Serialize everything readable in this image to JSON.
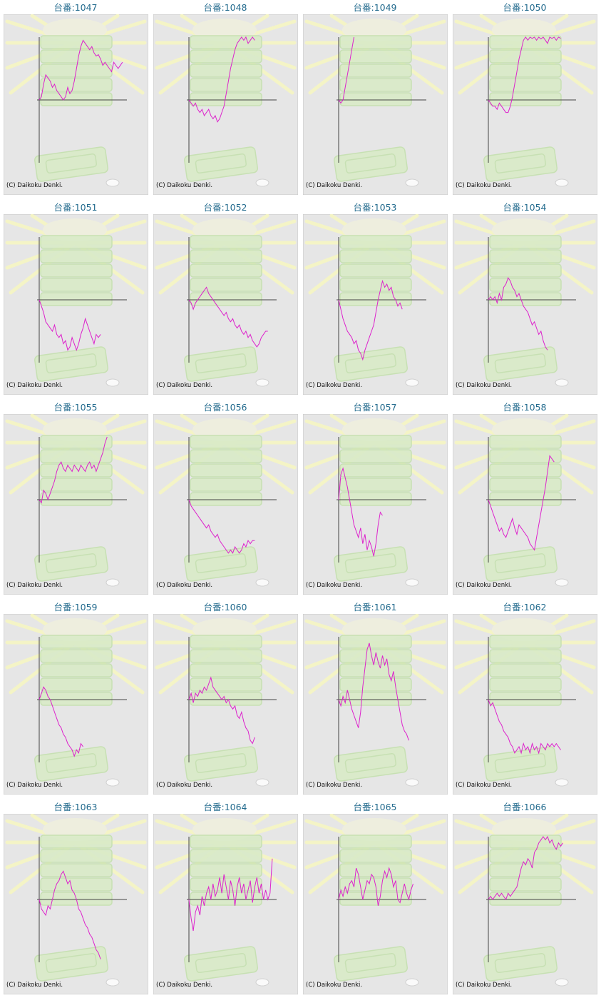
{
  "chart_data": [
    {
      "type": "line",
      "title": "台番:1047",
      "copyright": "(C) Daikoku Denki.",
      "color": "#dd22cc",
      "xlim": [
        0,
        40
      ],
      "ylim": [
        -100,
        100
      ],
      "yticks": [
        0
      ],
      "values": [
        0,
        5,
        25,
        40,
        35,
        30,
        20,
        25,
        15,
        10,
        5,
        0,
        5,
        20,
        10,
        15,
        30,
        50,
        70,
        85,
        95,
        90,
        85,
        80,
        85,
        75,
        70,
        72,
        65,
        55,
        60,
        55,
        50,
        45,
        60,
        55,
        50,
        55,
        60
      ]
    },
    {
      "type": "line",
      "title": "台番:1048",
      "copyright": "(C) Daikoku Denki.",
      "color": "#dd22cc",
      "xlim": [
        0,
        40
      ],
      "ylim": [
        -100,
        100
      ],
      "yticks": [
        0
      ],
      "values": [
        0,
        -5,
        -10,
        -5,
        -15,
        -20,
        -15,
        -25,
        -20,
        -15,
        -25,
        -30,
        -25,
        -35,
        -30,
        -20,
        -10,
        10,
        30,
        50,
        65,
        80,
        90,
        95,
        100,
        95,
        100,
        90,
        95,
        100,
        95
      ]
    },
    {
      "type": "line",
      "title": "台番:1049",
      "copyright": "(C) Daikoku Denki.",
      "color": "#dd22cc",
      "xlim": [
        0,
        40
      ],
      "ylim": [
        -100,
        100
      ],
      "yticks": [
        0
      ],
      "values": [
        0,
        -5,
        0,
        20,
        40,
        60,
        80,
        100
      ]
    },
    {
      "type": "line",
      "title": "台番:1050",
      "copyright": "(C) Daikoku Denki.",
      "color": "#dd22cc",
      "xlim": [
        0,
        40
      ],
      "ylim": [
        -100,
        100
      ],
      "yticks": [
        0
      ],
      "values": [
        0,
        -5,
        -10,
        -10,
        -15,
        -5,
        -10,
        -15,
        -20,
        -20,
        -10,
        5,
        25,
        45,
        65,
        80,
        95,
        100,
        95,
        100,
        98,
        100,
        95,
        100,
        97,
        100,
        95,
        90,
        100,
        98,
        100,
        95,
        100,
        98
      ]
    },
    {
      "type": "line",
      "title": "台番:1051",
      "copyright": "(C) Daikoku Denki.",
      "color": "#dd22cc",
      "xlim": [
        0,
        40
      ],
      "ylim": [
        -100,
        100
      ],
      "yticks": [
        0
      ],
      "values": [
        0,
        -10,
        -20,
        -35,
        -40,
        -45,
        -50,
        -40,
        -55,
        -60,
        -55,
        -70,
        -65,
        -80,
        -75,
        -60,
        -70,
        -80,
        -70,
        -55,
        -45,
        -30,
        -40,
        -50,
        -60,
        -70,
        -55,
        -60,
        -55
      ]
    },
    {
      "type": "line",
      "title": "台番:1052",
      "copyright": "(C) Daikoku Denki.",
      "color": "#dd22cc",
      "xlim": [
        0,
        40
      ],
      "ylim": [
        -100,
        100
      ],
      "yticks": [
        0
      ],
      "values": [
        0,
        -5,
        -15,
        -5,
        0,
        5,
        10,
        15,
        20,
        10,
        5,
        0,
        -5,
        -10,
        -15,
        -20,
        -25,
        -20,
        -30,
        -35,
        -30,
        -40,
        -45,
        -40,
        -50,
        -55,
        -50,
        -60,
        -55,
        -65,
        -70,
        -75,
        -70,
        -60,
        -55,
        -50,
        -50
      ]
    },
    {
      "type": "line",
      "title": "台番:1053",
      "copyright": "(C) Daikoku Denki.",
      "color": "#dd22cc",
      "xlim": [
        0,
        40
      ],
      "ylim": [
        -100,
        100
      ],
      "yticks": [
        0
      ],
      "values": [
        0,
        -15,
        -30,
        -40,
        -50,
        -55,
        -60,
        -70,
        -65,
        -80,
        -85,
        -95,
        -80,
        -70,
        -60,
        -50,
        -40,
        -20,
        0,
        15,
        30,
        20,
        25,
        15,
        20,
        5,
        0,
        -10,
        -5,
        -15
      ]
    },
    {
      "type": "line",
      "title": "台番:1054",
      "copyright": "(C) Daikoku Denki.",
      "color": "#dd22cc",
      "xlim": [
        0,
        40
      ],
      "ylim": [
        -100,
        100
      ],
      "yticks": [
        0
      ],
      "values": [
        0,
        5,
        0,
        5,
        -5,
        10,
        0,
        20,
        25,
        35,
        30,
        20,
        15,
        5,
        10,
        0,
        -10,
        -15,
        -20,
        -30,
        -40,
        -35,
        -45,
        -55,
        -50,
        -65,
        -75,
        -80
      ]
    },
    {
      "type": "line",
      "title": "台番:1055",
      "copyright": "(C) Daikoku Denki.",
      "color": "#dd22cc",
      "xlim": [
        0,
        40
      ],
      "ylim": [
        -100,
        100
      ],
      "yticks": [
        0
      ],
      "values": [
        0,
        -5,
        15,
        10,
        0,
        10,
        20,
        30,
        45,
        55,
        60,
        50,
        45,
        55,
        50,
        45,
        55,
        50,
        45,
        55,
        50,
        45,
        55,
        60,
        50,
        55,
        45,
        55,
        65,
        75,
        90,
        100
      ]
    },
    {
      "type": "line",
      "title": "台番:1056",
      "copyright": "(C) Daikoku Denki.",
      "color": "#dd22cc",
      "xlim": [
        0,
        40
      ],
      "ylim": [
        -100,
        100
      ],
      "yticks": [
        0
      ],
      "values": [
        0,
        -10,
        -15,
        -20,
        -25,
        -30,
        -35,
        -40,
        -45,
        -40,
        -50,
        -55,
        -60,
        -55,
        -65,
        -70,
        -75,
        -80,
        -85,
        -80,
        -85,
        -75,
        -80,
        -85,
        -80,
        -70,
        -75,
        -65,
        -70,
        -65,
        -65
      ]
    },
    {
      "type": "line",
      "title": "台番:1057",
      "copyright": "(C) Daikoku Denki.",
      "color": "#dd22cc",
      "xlim": [
        0,
        40
      ],
      "ylim": [
        -100,
        100
      ],
      "yticks": [
        0
      ],
      "values": [
        0,
        40,
        50,
        35,
        20,
        0,
        -20,
        -40,
        -50,
        -60,
        -45,
        -70,
        -55,
        -80,
        -65,
        -75,
        -90,
        -70,
        -40,
        -20,
        -25
      ]
    },
    {
      "type": "line",
      "title": "台番:1058",
      "copyright": "(C) Daikoku Denki.",
      "color": "#dd22cc",
      "xlim": [
        0,
        40
      ],
      "ylim": [
        -100,
        100
      ],
      "yticks": [
        0
      ],
      "values": [
        0,
        -10,
        -20,
        -30,
        -40,
        -50,
        -45,
        -55,
        -60,
        -50,
        -40,
        -30,
        -45,
        -55,
        -40,
        -45,
        -50,
        -55,
        -60,
        -70,
        -75,
        -80,
        -60,
        -40,
        -20,
        0,
        20,
        45,
        70,
        65,
        60
      ]
    },
    {
      "type": "line",
      "title": "台番:1059",
      "copyright": "(C) Daikoku Denki.",
      "color": "#dd22cc",
      "xlim": [
        0,
        40
      ],
      "ylim": [
        -100,
        100
      ],
      "yticks": [
        0
      ],
      "values": [
        0,
        10,
        20,
        15,
        5,
        0,
        -10,
        -20,
        -30,
        -40,
        -45,
        -55,
        -60,
        -70,
        -75,
        -80,
        -90,
        -80,
        -85,
        -70,
        -75
      ]
    },
    {
      "type": "line",
      "title": "台番:1060",
      "copyright": "(C) Daikoku Denki.",
      "color": "#dd22cc",
      "xlim": [
        0,
        40
      ],
      "ylim": [
        -100,
        100
      ],
      "yticks": [
        0
      ],
      "values": [
        0,
        10,
        -5,
        10,
        5,
        15,
        10,
        20,
        15,
        25,
        35,
        20,
        15,
        10,
        5,
        0,
        5,
        -5,
        0,
        -10,
        -15,
        -10,
        -25,
        -30,
        -20,
        -35,
        -45,
        -50,
        -65,
        -70,
        -60
      ]
    },
    {
      "type": "line",
      "title": "台番:1061",
      "copyright": "(C) Daikoku Denki.",
      "color": "#dd22cc",
      "xlim": [
        0,
        40
      ],
      "ylim": [
        -100,
        100
      ],
      "yticks": [
        0
      ],
      "values": [
        0,
        -10,
        5,
        -5,
        15,
        0,
        -15,
        -25,
        -35,
        -45,
        -20,
        20,
        50,
        80,
        90,
        70,
        55,
        75,
        60,
        50,
        70,
        55,
        65,
        40,
        30,
        45,
        20,
        0,
        -20,
        -40,
        -50,
        -55,
        -65
      ]
    },
    {
      "type": "line",
      "title": "台番:1062",
      "copyright": "(C) Daikoku Denki.",
      "color": "#dd22cc",
      "xlim": [
        0,
        40
      ],
      "ylim": [
        -100,
        100
      ],
      "yticks": [
        0
      ],
      "values": [
        0,
        -10,
        -5,
        -15,
        -25,
        -35,
        -40,
        -50,
        -55,
        -60,
        -70,
        -75,
        -85,
        -80,
        -75,
        -85,
        -70,
        -80,
        -75,
        -85,
        -70,
        -80,
        -75,
        -85,
        -70,
        -75,
        -80,
        -70,
        -75,
        -70,
        -75,
        -70,
        -75,
        -80
      ]
    },
    {
      "type": "line",
      "title": "台番:1063",
      "copyright": "(C) Daikoku Denki.",
      "color": "#dd22cc",
      "xlim": [
        0,
        40
      ],
      "ylim": [
        -100,
        100
      ],
      "yticks": [
        0
      ],
      "values": [
        0,
        -15,
        -20,
        -25,
        -10,
        -15,
        0,
        15,
        25,
        30,
        40,
        45,
        35,
        25,
        30,
        15,
        10,
        0,
        -15,
        -20,
        -30,
        -40,
        -45,
        -55,
        -60,
        -70,
        -80,
        -85,
        -95
      ]
    },
    {
      "type": "line",
      "title": "台番:1064",
      "copyright": "(C) Daikoku Denki.",
      "color": "#dd22cc",
      "xlim": [
        0,
        40
      ],
      "ylim": [
        -100,
        100
      ],
      "yticks": [
        0
      ],
      "values": [
        0,
        -30,
        -50,
        -20,
        -10,
        -25,
        5,
        -10,
        10,
        20,
        0,
        25,
        5,
        15,
        35,
        10,
        40,
        20,
        0,
        30,
        15,
        -10,
        20,
        35,
        10,
        25,
        0,
        15,
        30,
        -5,
        20,
        35,
        10,
        25,
        0,
        15,
        0,
        10,
        65
      ]
    },
    {
      "type": "line",
      "title": "台番:1065",
      "copyright": "(C) Daikoku Denki.",
      "color": "#dd22cc",
      "xlim": [
        0,
        40
      ],
      "ylim": [
        -100,
        100
      ],
      "yticks": [
        0
      ],
      "values": [
        0,
        15,
        5,
        20,
        10,
        25,
        30,
        20,
        50,
        40,
        20,
        0,
        15,
        30,
        25,
        40,
        35,
        20,
        -10,
        5,
        30,
        45,
        35,
        50,
        40,
        20,
        30,
        0,
        -5,
        10,
        25,
        10,
        0,
        15,
        25
      ]
    },
    {
      "type": "line",
      "title": "台番:1066",
      "copyright": "(C) Daikoku Denki.",
      "color": "#dd22cc",
      "xlim": [
        0,
        40
      ],
      "ylim": [
        -100,
        100
      ],
      "yticks": [
        0
      ],
      "values": [
        0,
        5,
        0,
        5,
        10,
        5,
        10,
        5,
        0,
        10,
        5,
        10,
        15,
        20,
        35,
        50,
        60,
        55,
        65,
        60,
        50,
        75,
        80,
        90,
        95,
        100,
        95,
        100,
        90,
        95,
        85,
        80,
        90,
        85,
        90
      ]
    }
  ]
}
